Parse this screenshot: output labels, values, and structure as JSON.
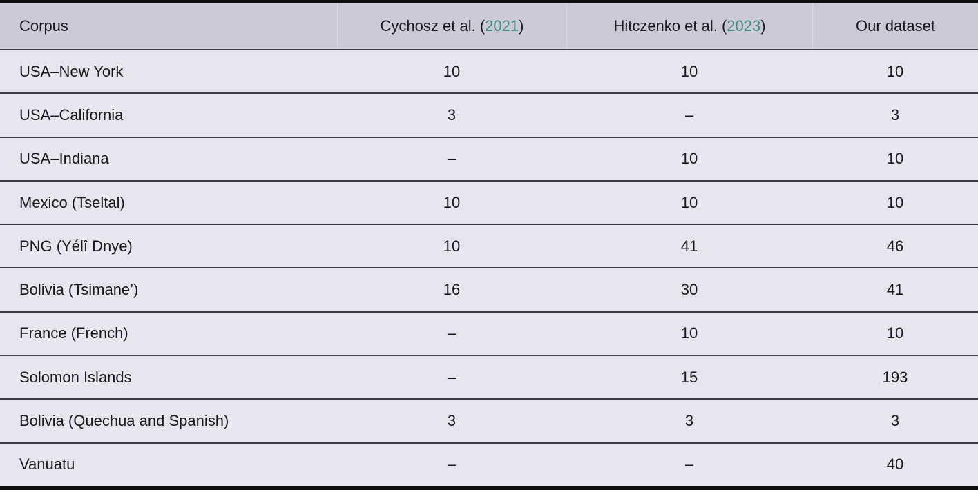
{
  "table": {
    "columns": {
      "corpus": {
        "label": "Corpus"
      },
      "cychosz": {
        "pre": "Cychosz et al. (",
        "year": "2021",
        "post": ")"
      },
      "hitczenko": {
        "pre": "Hitczenko et al. (",
        "year": "2023",
        "post": ")"
      },
      "ours": {
        "label": "Our dataset"
      }
    },
    "rows": [
      {
        "corpus": "USA–New York",
        "cychosz": "10",
        "hitczenko": "10",
        "ours": "10"
      },
      {
        "corpus": "USA–California",
        "cychosz": "3",
        "hitczenko": "–",
        "ours": "3"
      },
      {
        "corpus": "USA–Indiana",
        "cychosz": "–",
        "hitczenko": "10",
        "ours": "10"
      },
      {
        "corpus": "Mexico (Tseltal)",
        "cychosz": "10",
        "hitczenko": "10",
        "ours": "10"
      },
      {
        "corpus": "PNG (Yélî Dnye)",
        "cychosz": "10",
        "hitczenko": "41",
        "ours": "46"
      },
      {
        "corpus": "Bolivia (Tsimane’)",
        "cychosz": "16",
        "hitczenko": "30",
        "ours": "41"
      },
      {
        "corpus": "France (French)",
        "cychosz": "–",
        "hitczenko": "10",
        "ours": "10"
      },
      {
        "corpus": "Solomon Islands",
        "cychosz": "–",
        "hitczenko": "15",
        "ours": "193"
      },
      {
        "corpus": "Bolivia (Quechua and Spanish)",
        "cychosz": "3",
        "hitczenko": "3",
        "ours": "3"
      },
      {
        "corpus": "Vanuatu",
        "cychosz": "–",
        "hitczenko": "–",
        "ours": "40"
      }
    ]
  },
  "colors": {
    "citation_year_teal": "#468c84",
    "header_background": "#cdcad8",
    "row_background": "#e7e6ef",
    "rule_dark": "#3d3d46",
    "border_black": "#0f0f12"
  }
}
